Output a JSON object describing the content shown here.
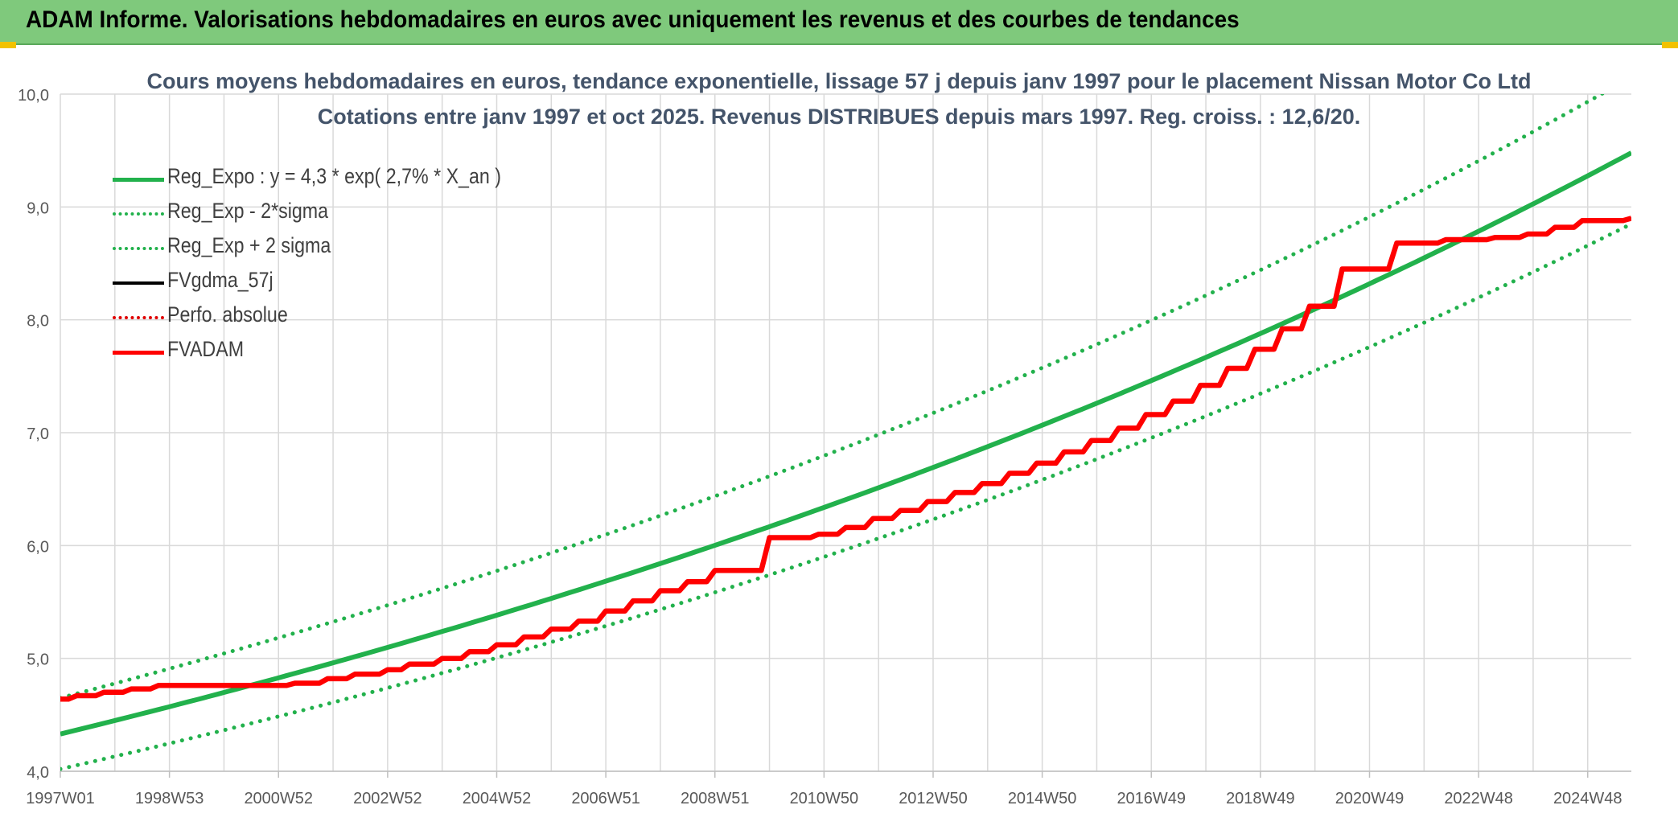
{
  "banner": {
    "title": "ADAM Informe. Valorisations hebdomadaires en euros avec uniquement les revenus et des courbes de tendances"
  },
  "chart_data": {
    "type": "line",
    "title": "Cours moyens hebdomadaires en euros, tendance exponentielle, lissage 57 j depuis janv 1997 pour le placement Nissan Motor Co Ltd",
    "subtitle": "Cotations entre janv 1997 et oct 2025. Revenus DISTRIBUES depuis mars 1997. Reg. croiss. : 12,6/20.",
    "xlabel": "",
    "ylabel": "",
    "ylim": [
      4.0,
      10.0
    ],
    "xlim": [
      1997.0,
      2025.8
    ],
    "y_ticks": [
      "4,0",
      "5,0",
      "6,0",
      "7,0",
      "8,0",
      "9,0",
      "10,0"
    ],
    "x_ticks": [
      {
        "label": "1997W01",
        "x": 1997.0
      },
      {
        "label": "1998W53",
        "x": 1999.0
      },
      {
        "label": "2000W52",
        "x": 2001.0
      },
      {
        "label": "2002W52",
        "x": 2003.0
      },
      {
        "label": "2004W52",
        "x": 2005.0
      },
      {
        "label": "2006W51",
        "x": 2007.0
      },
      {
        "label": "2008W51",
        "x": 2009.0
      },
      {
        "label": "2010W50",
        "x": 2011.0
      },
      {
        "label": "2012W50",
        "x": 2013.0
      },
      {
        "label": "2014W50",
        "x": 2015.0
      },
      {
        "label": "2016W49",
        "x": 2017.0
      },
      {
        "label": "2018W49",
        "x": 2019.0
      },
      {
        "label": "2020W49",
        "x": 2021.0
      },
      {
        "label": "2022W48",
        "x": 2023.0
      },
      {
        "label": "2024W48",
        "x": 2025.0
      }
    ],
    "grid": true,
    "legend_position": "top-left",
    "series": [
      {
        "name": "Reg_Expo : y = 4,3 * exp( 2,7% *  X_an )",
        "color": "#22b14c",
        "style": "solid",
        "x": [
          1997.0,
          2025.8
        ],
        "y": [
          4.33,
          9.48
        ]
      },
      {
        "name": "Reg_Exp - 2*sigma",
        "color": "#22b14c",
        "style": "dotted",
        "x": [
          1997.0,
          2025.8
        ],
        "y": [
          4.02,
          8.85
        ]
      },
      {
        "name": "Reg_Exp + 2 sigma",
        "color": "#22b14c",
        "style": "dotted",
        "x": [
          1997.0,
          2025.8
        ],
        "y": [
          4.65,
          10.15
        ]
      },
      {
        "name": "FVgdma_57j",
        "color": "#000000",
        "style": "solid",
        "x": [
          1997.0,
          1997.3,
          1997.8,
          1998.3,
          1998.8,
          1999.6,
          2000.5,
          2001.3,
          2001.9,
          2002.4,
          2003.0,
          2003.4,
          2004.0,
          2004.5,
          2005.0,
          2005.5,
          2006.0,
          2006.5,
          2007.0,
          2007.5,
          2008.0,
          2008.5,
          2009.0,
          2010.0,
          2010.9,
          2011.4,
          2011.9,
          2012.4,
          2012.9,
          2013.4,
          2013.9,
          2014.4,
          2014.9,
          2015.4,
          2015.9,
          2016.4,
          2016.9,
          2017.4,
          2017.9,
          2018.4,
          2018.9,
          2019.4,
          2019.9,
          2020.5,
          2021.5,
          2022.4,
          2023.3,
          2023.9,
          2024.4,
          2024.9,
          2025.8
        ],
        "y": [
          4.64,
          4.67,
          4.7,
          4.73,
          4.76,
          4.76,
          4.76,
          4.78,
          4.82,
          4.86,
          4.9,
          4.95,
          5.0,
          5.06,
          5.12,
          5.19,
          5.26,
          5.33,
          5.42,
          5.51,
          5.6,
          5.68,
          5.78,
          6.07,
          6.1,
          6.16,
          6.24,
          6.31,
          6.39,
          6.47,
          6.55,
          6.64,
          6.73,
          6.83,
          6.93,
          7.04,
          7.16,
          7.28,
          7.42,
          7.57,
          7.74,
          7.92,
          8.12,
          8.45,
          8.68,
          8.71,
          8.73,
          8.76,
          8.82,
          8.88,
          8.9
        ]
      },
      {
        "name": "Perfo. absolue",
        "color": "#e00000",
        "style": "dotted",
        "x": [],
        "y": []
      },
      {
        "name": "FVADAM",
        "color": "#ff0000",
        "style": "solid",
        "x": [
          1997.0,
          1997.3,
          1997.8,
          1998.3,
          1998.8,
          1999.6,
          2000.5,
          2001.3,
          2001.9,
          2002.4,
          2003.0,
          2003.4,
          2004.0,
          2004.5,
          2005.0,
          2005.5,
          2006.0,
          2006.5,
          2007.0,
          2007.5,
          2008.0,
          2008.5,
          2009.0,
          2010.0,
          2010.9,
          2011.4,
          2011.9,
          2012.4,
          2012.9,
          2013.4,
          2013.9,
          2014.4,
          2014.9,
          2015.4,
          2015.9,
          2016.4,
          2016.9,
          2017.4,
          2017.9,
          2018.4,
          2018.9,
          2019.4,
          2019.9,
          2020.5,
          2021.5,
          2022.4,
          2023.3,
          2023.9,
          2024.4,
          2024.9,
          2025.8
        ],
        "y": [
          4.64,
          4.67,
          4.7,
          4.73,
          4.76,
          4.76,
          4.76,
          4.78,
          4.82,
          4.86,
          4.9,
          4.95,
          5.0,
          5.06,
          5.12,
          5.19,
          5.26,
          5.33,
          5.42,
          5.51,
          5.6,
          5.68,
          5.78,
          6.07,
          6.1,
          6.16,
          6.24,
          6.31,
          6.39,
          6.47,
          6.55,
          6.64,
          6.73,
          6.83,
          6.93,
          7.04,
          7.16,
          7.28,
          7.42,
          7.57,
          7.74,
          7.92,
          8.12,
          8.45,
          8.68,
          8.71,
          8.73,
          8.76,
          8.82,
          8.88,
          8.9
        ]
      }
    ]
  }
}
